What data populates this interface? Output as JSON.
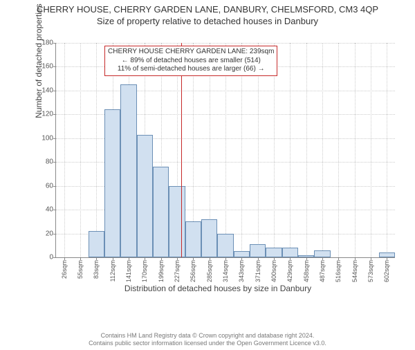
{
  "title_main": "CHERRY HOUSE, CHERRY GARDEN LANE, DANBURY, CHELMSFORD, CM3 4QP",
  "title_sub": "Size of property relative to detached houses in Danbury",
  "y_axis_title": "Number of detached properties",
  "x_axis_title": "Distribution of detached houses by size in Danbury",
  "footer_line1": "Contains HM Land Registry data © Crown copyright and database right 2024.",
  "footer_line2": "Contains public sector information licensed under the Open Government Licence v3.0.",
  "chart": {
    "type": "histogram",
    "ylim": [
      0,
      180
    ],
    "ytick_step": 20,
    "y_ticks": [
      0,
      20,
      40,
      60,
      80,
      100,
      120,
      140,
      160,
      180
    ],
    "x_labels": [
      "26sqm",
      "55sqm",
      "83sqm",
      "112sqm",
      "141sqm",
      "170sqm",
      "199sqm",
      "227sqm",
      "256sqm",
      "285sqm",
      "314sqm",
      "343sqm",
      "371sqm",
      "400sqm",
      "429sqm",
      "458sqm",
      "487sqm",
      "516sqm",
      "544sqm",
      "573sqm",
      "602sqm"
    ],
    "bar_values": [
      0,
      0,
      22,
      124,
      145,
      103,
      76,
      60,
      30,
      32,
      20,
      5,
      11,
      8,
      8,
      2,
      6,
      0,
      0,
      0,
      4
    ],
    "bar_fill": "#d1e0f0",
    "bar_border": "#6b8fb5",
    "grid_color": "#cccccc",
    "axis_color": "#888888",
    "background": "#ffffff",
    "marker_x_sqm": 239,
    "marker_color": "#c62828"
  },
  "annotation": {
    "line1": "CHERRY HOUSE CHERRY GARDEN LANE: 239sqm",
    "line2": "← 89% of detached houses are smaller (514)",
    "line3": "11% of semi-detached houses are larger (66) →"
  }
}
